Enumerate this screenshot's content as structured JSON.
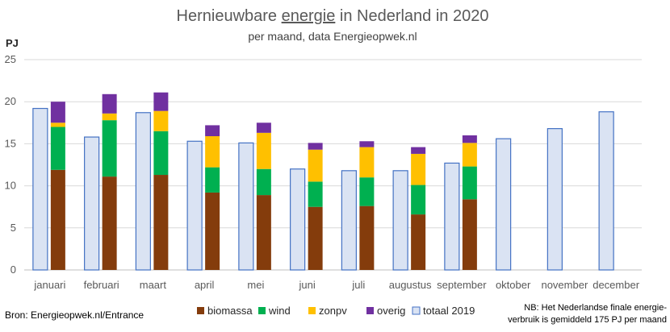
{
  "chart_data": {
    "type": "bar",
    "title_parts": [
      "Hernieuwbare ",
      "energie",
      " in Nederland in 2020"
    ],
    "subtitle": "per maand, data Energieopwek.nl",
    "ylabel": "PJ",
    "ylim": [
      0,
      25
    ],
    "yticks": [
      0,
      5,
      10,
      15,
      20,
      25
    ],
    "grid": true,
    "legend_position": "bottom",
    "categories": [
      "januari",
      "februari",
      "maart",
      "april",
      "mei",
      "juni",
      "juli",
      "augustus",
      "september",
      "oktober",
      "november",
      "december"
    ],
    "series": [
      {
        "name": "biomassa",
        "color": "#843C0C",
        "stack": "2020",
        "values": [
          11.9,
          11.1,
          11.3,
          9.2,
          8.9,
          7.5,
          7.6,
          6.6,
          8.4,
          null,
          null,
          null
        ]
      },
      {
        "name": "wind",
        "color": "#00B050",
        "stack": "2020",
        "values": [
          5.1,
          6.7,
          5.2,
          3.0,
          3.1,
          3.0,
          3.4,
          3.5,
          3.9,
          null,
          null,
          null
        ]
      },
      {
        "name": "zonpv",
        "color": "#FFC000",
        "stack": "2020",
        "values": [
          0.5,
          0.8,
          2.4,
          3.7,
          4.3,
          3.8,
          3.6,
          3.7,
          2.8,
          null,
          null,
          null
        ]
      },
      {
        "name": "overig",
        "color": "#7030A0",
        "stack": "2020",
        "values": [
          2.5,
          2.3,
          2.2,
          1.3,
          1.2,
          0.8,
          0.7,
          0.8,
          0.9,
          null,
          null,
          null
        ]
      },
      {
        "name": "totaal 2019",
        "color": "#DAE3F3",
        "stroke": "#4472C4",
        "stack": "2019",
        "values": [
          19.2,
          15.8,
          18.7,
          15.3,
          15.1,
          12.0,
          11.8,
          11.8,
          12.7,
          15.6,
          16.8,
          18.8
        ]
      }
    ]
  },
  "source": "Bron: Energieopwek.nl/Entrance",
  "note_lines": [
    "NB: Het Nederlandse finale energie-",
    "verbruik is gemiddeld 175 PJ per maand"
  ]
}
